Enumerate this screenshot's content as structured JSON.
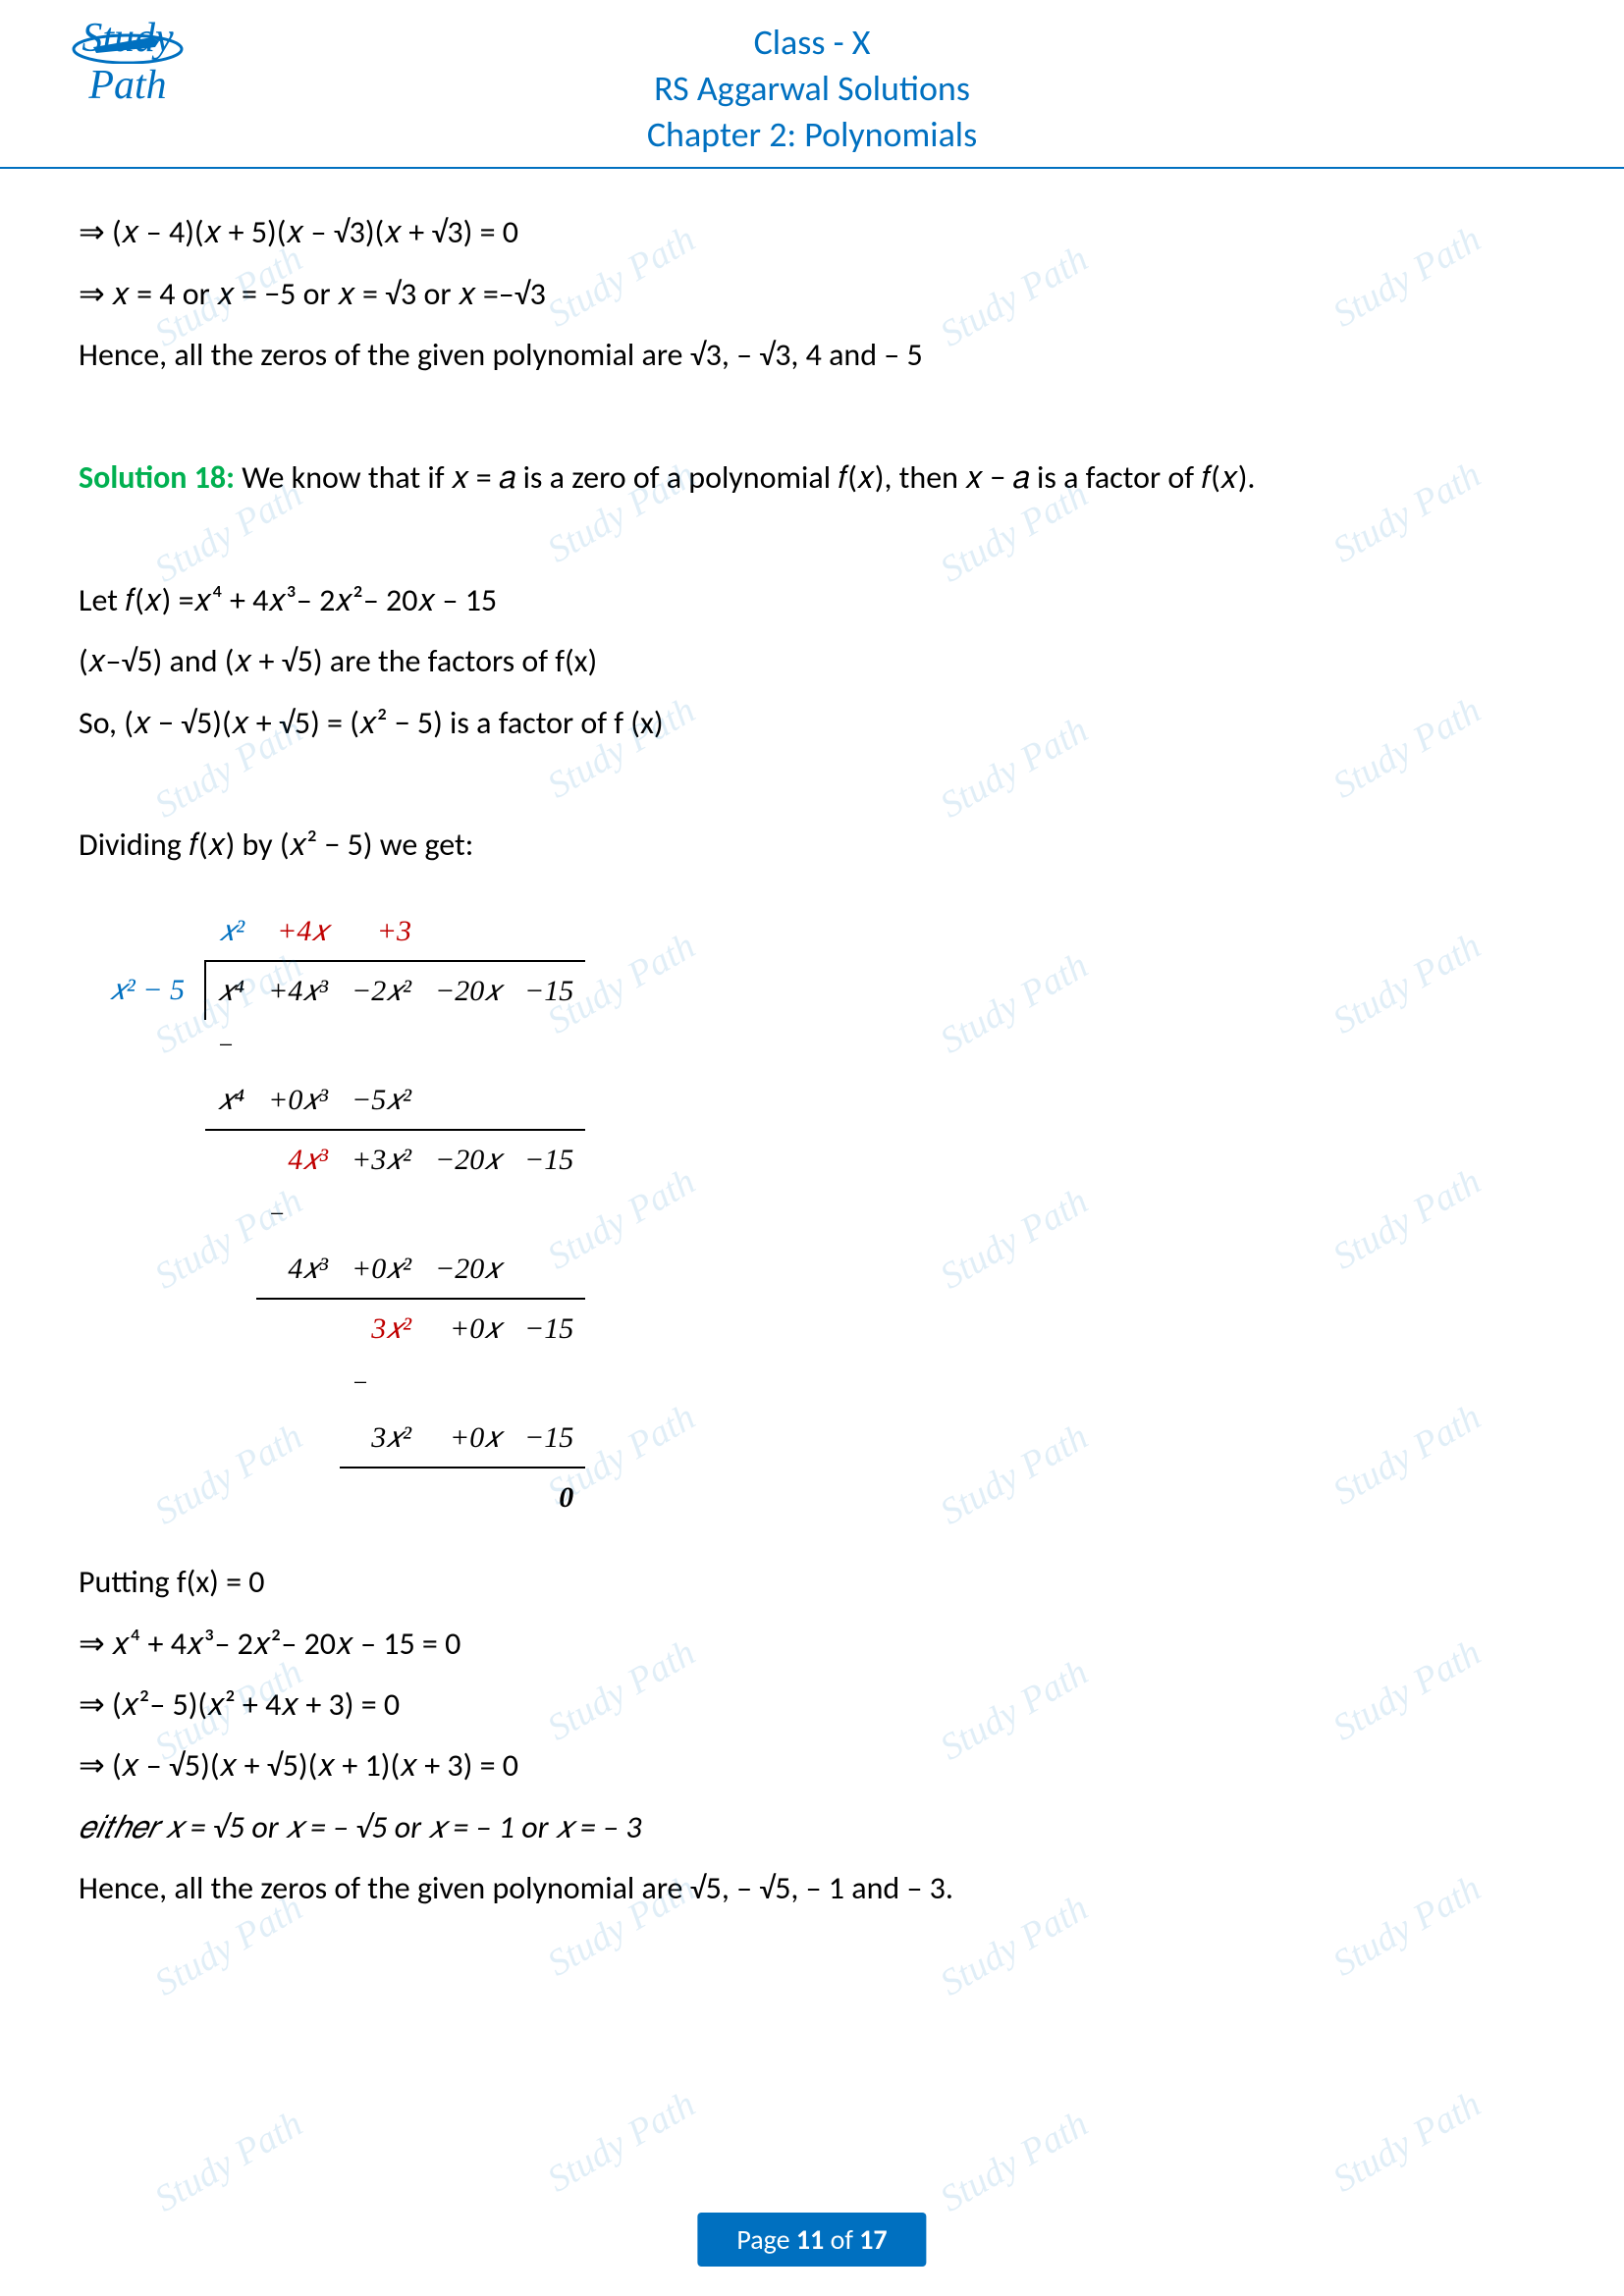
{
  "header": {
    "class": "Class - X",
    "book": "RS Aggarwal Solutions",
    "chapter": "Chapter 2: Polynomials",
    "logo_text": "Study Path"
  },
  "content": {
    "line1": "⇒ (𝑥 – 4)(𝑥 + 5)(𝑥 – √3)(𝑥 + √3) = 0",
    "line2": "⇒ 𝑥 = 4 or 𝑥 = −5 or 𝑥 = √3 or 𝑥 =–√3",
    "line3": "Hence, all the zeros of the given polynomial are √3, – √3, 4 and – 5",
    "solution_label": "Solution 18:",
    "solution_text": " We know that if 𝑥 = 𝑎 is a zero of a polynomial 𝑓(𝑥), then 𝑥 − 𝑎 is a factor of 𝑓(𝑥).",
    "let_line": "Let 𝑓(𝑥) =𝑥⁴ + 4𝑥³– 2𝑥²– 20𝑥 – 15",
    "factors_line": "(𝑥–√5) and (𝑥 + √5) are the factors of f(x)",
    "so_line": "So, (𝑥 − √5)(𝑥 + √5) = (𝑥² − 5) is a factor of f (x)",
    "dividing_line": "Dividing 𝑓(𝑥) by (𝑥² − 5) we get:",
    "putting_line": "Putting f(x) = 0",
    "eq1": "⇒ 𝑥⁴ + 4𝑥³– 2𝑥²– 20𝑥 – 15 = 0",
    "eq2": "⇒ (𝑥²– 5)(𝑥² + 4𝑥 + 3) = 0",
    "eq3": "⇒ (𝑥 – √5)(𝑥 + √5)(𝑥 + 1)(𝑥 + 3) = 0",
    "either_line": "𝑒𝑖𝑡ℎ𝑒𝑟 𝑥 = √5  or 𝑥 = – √5  or 𝑥  = – 1 or 𝑥  = – 3",
    "hence_line": "Hence, all the zeros of the given polynomial are √5, – √5, – 1 and – 3."
  },
  "division": {
    "divisor": "𝑥² − 5",
    "quotient": {
      "t1": "𝑥²",
      "t2": "+4𝑥",
      "t3": "+3"
    },
    "dividend": [
      "𝑥⁴",
      "+4𝑥³",
      "−2𝑥²",
      "−20𝑥",
      "−15"
    ],
    "step1_sub": [
      "𝑥⁴",
      "+0𝑥³",
      "−5𝑥²"
    ],
    "step1_res": [
      "4𝑥³",
      "+3𝑥²",
      "−20𝑥",
      "−15"
    ],
    "step2_sub": [
      "4𝑥³",
      "+0𝑥²",
      "−20𝑥"
    ],
    "step2_res": [
      "3𝑥²",
      "+0𝑥",
      "−15"
    ],
    "step3_sub": [
      "3𝑥²",
      "+0𝑥",
      "−15"
    ],
    "remainder": "0"
  },
  "footer": {
    "page_label": "Page ",
    "page_num": "11",
    "of_label": " of ",
    "total": "17"
  },
  "watermark_text": "Study Path",
  "colors": {
    "primary": "#0070c0",
    "green": "#00b050",
    "red": "#c00000",
    "text": "#000000"
  }
}
